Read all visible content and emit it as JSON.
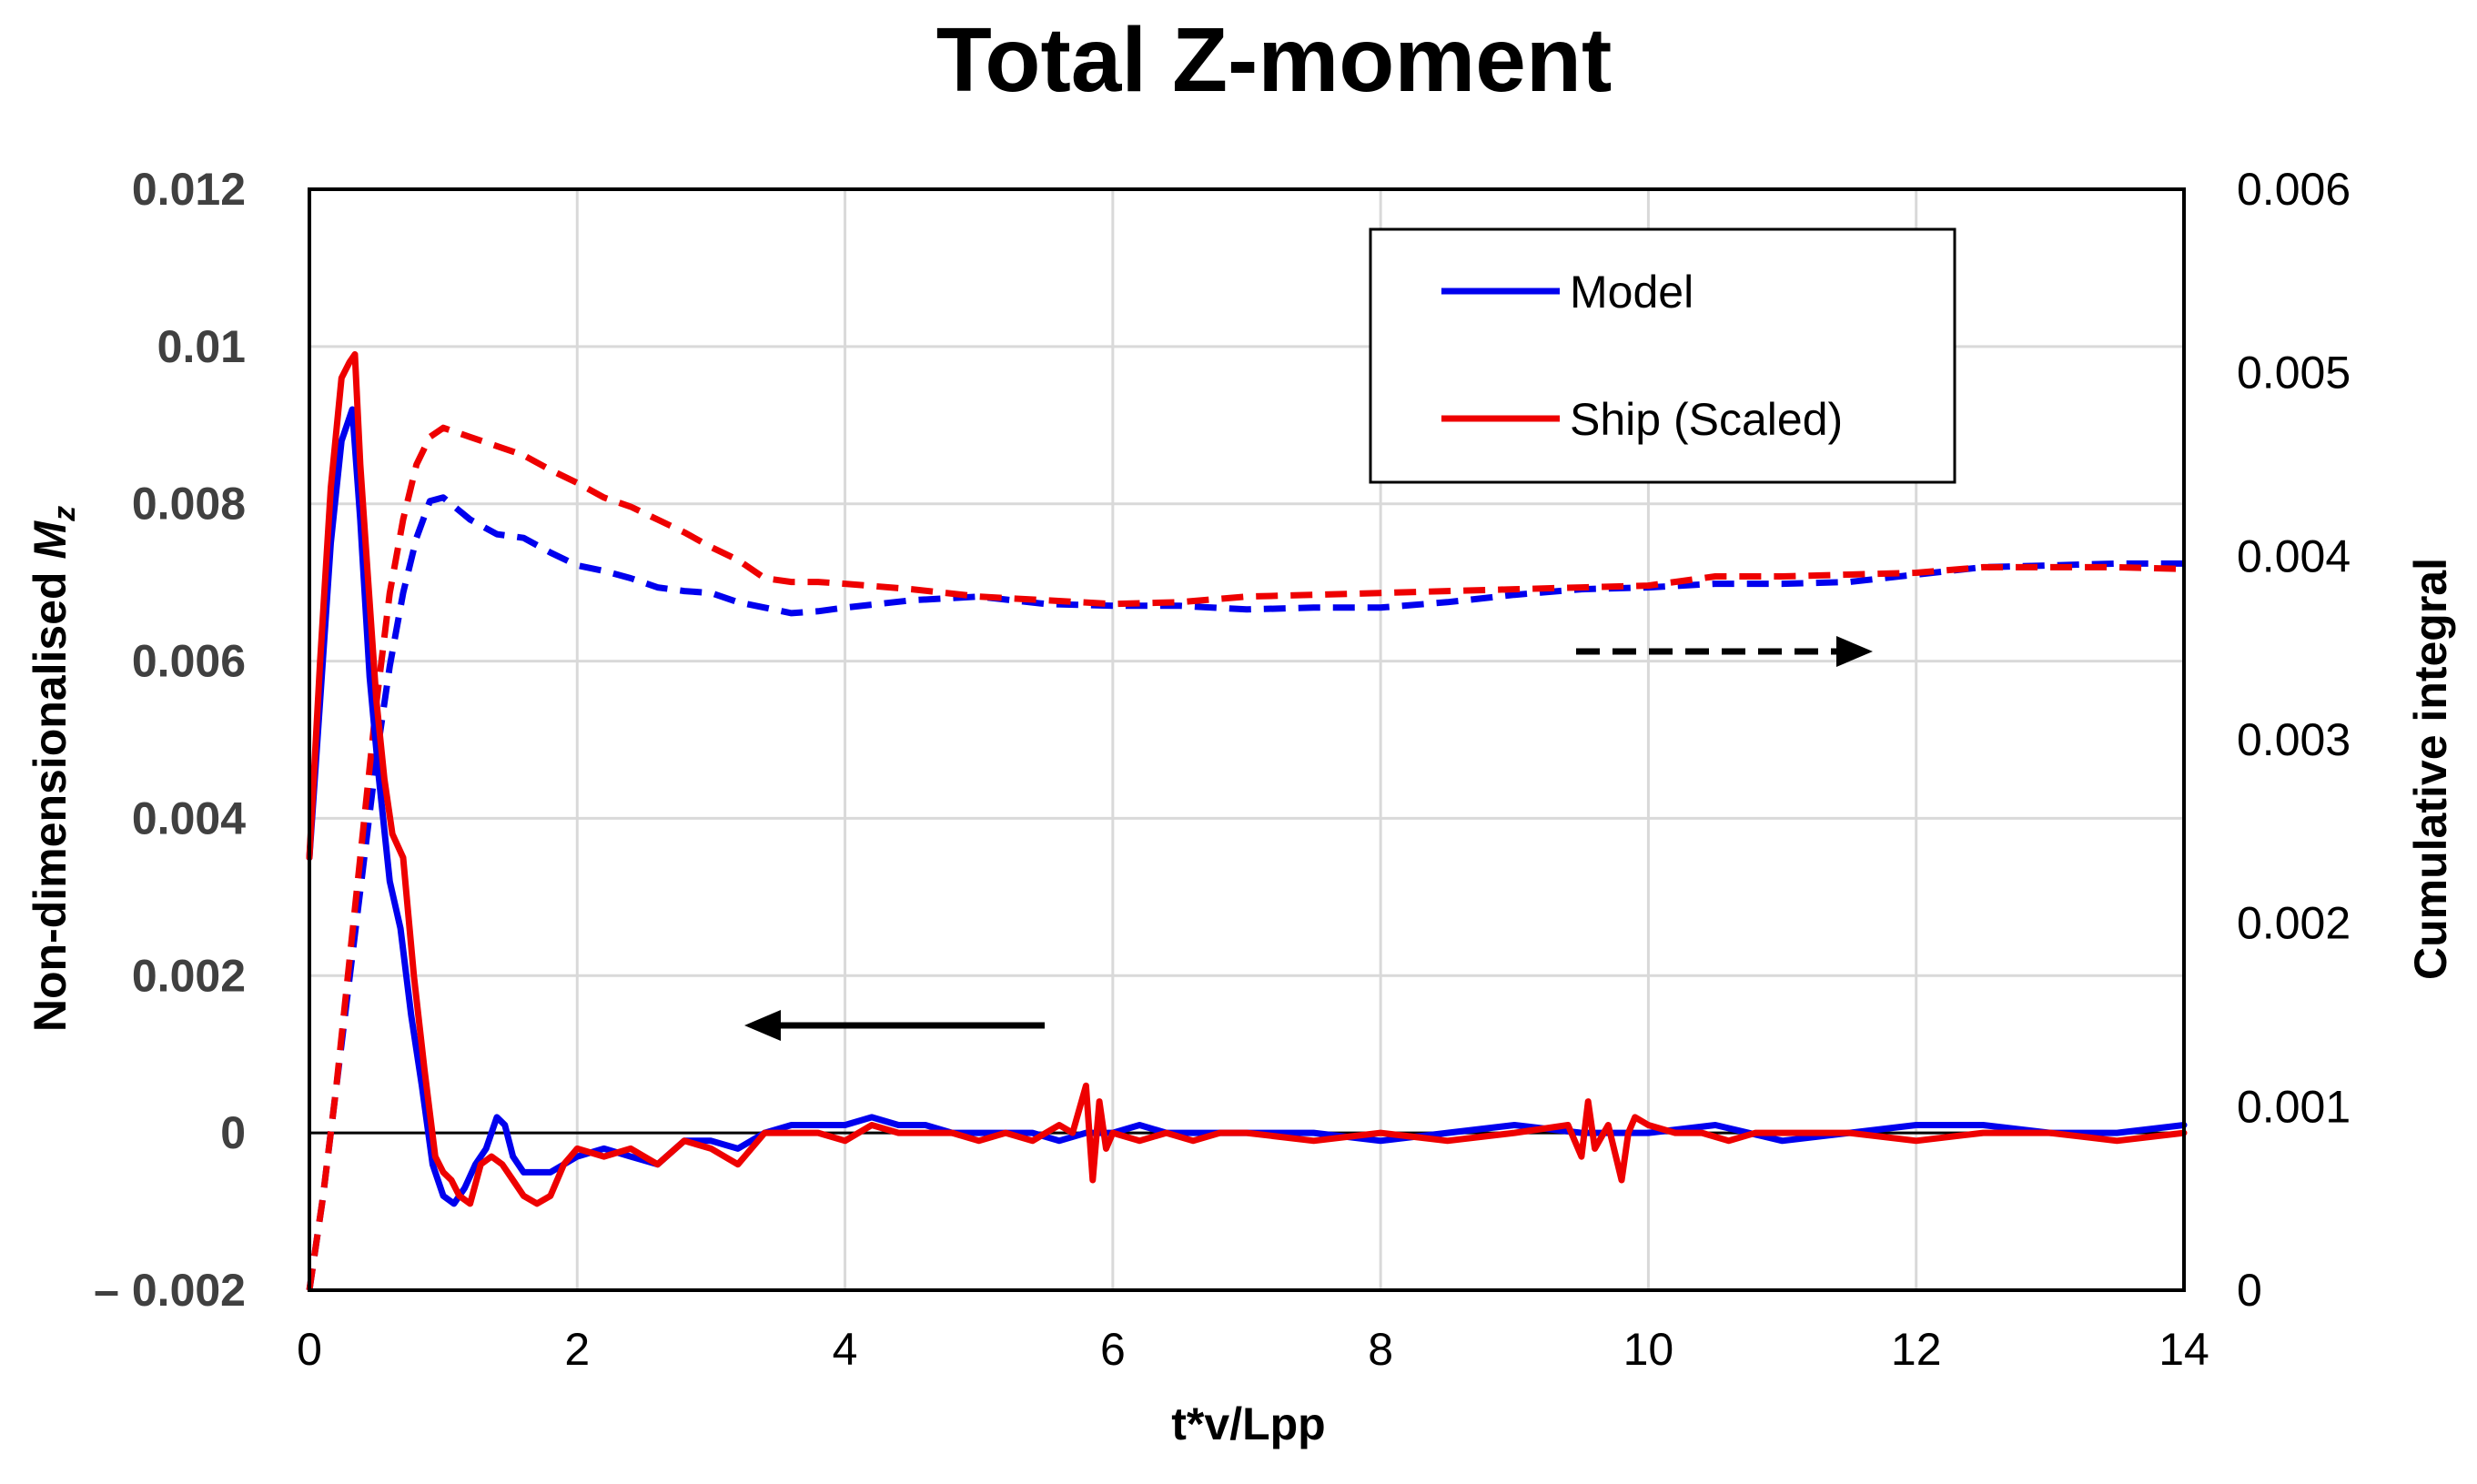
{
  "chart_data": {
    "type": "line",
    "title": "Total Z-moment",
    "xlabel": "t*v/Lpp",
    "ylabel": "Non-dimensionalised",
    "ylabel_symbol": "M",
    "ylabel_subscript": "z",
    "y2label": "Cumulative integral",
    "xlim": [
      0,
      14
    ],
    "ylim": [
      -0.002,
      0.012
    ],
    "y2lim": [
      0,
      0.006
    ],
    "x_ticks": [
      "0",
      "2",
      "4",
      "6",
      "8",
      "10",
      "12",
      "14"
    ],
    "y_ticks": [
      "– 0.002",
      "0",
      "0.002",
      "0.004",
      "0.006",
      "0.008",
      "0.01",
      "0.012"
    ],
    "y2_ticks": [
      "0",
      "0.001",
      "0.002",
      "0.003",
      "0.004",
      "0.005",
      "0.006"
    ],
    "grid": true,
    "legend_position": "top-right",
    "legend": [
      "Model",
      "Ship (Scaled)"
    ],
    "series": [
      {
        "name": "Model",
        "kind": "moment",
        "axis": "left",
        "color": "#0000ee",
        "style": "solid",
        "x": [
          0,
          0.08,
          0.16,
          0.24,
          0.32,
          0.38,
          0.45,
          0.52,
          0.6,
          0.68,
          0.76,
          0.84,
          0.92,
          1.0,
          1.08,
          1.16,
          1.24,
          1.32,
          1.4,
          1.46,
          1.52,
          1.6,
          1.7,
          1.8,
          1.9,
          2.0,
          2.2,
          2.4,
          2.6,
          2.8,
          3.0,
          3.2,
          3.4,
          3.6,
          3.8,
          4.0,
          4.2,
          4.4,
          4.6,
          4.8,
          5.0,
          5.2,
          5.4,
          5.6,
          5.8,
          6.0,
          6.2,
          6.4,
          6.6,
          6.8,
          7.0,
          7.5,
          8.0,
          8.5,
          9.0,
          9.5,
          10.0,
          10.5,
          11.0,
          11.5,
          12.0,
          12.5,
          13.0,
          13.5,
          14.0
        ],
        "values": [
          0.0035,
          0.0055,
          0.0075,
          0.0088,
          0.0092,
          0.0078,
          0.0058,
          0.0045,
          0.0032,
          0.0026,
          0.0015,
          0.0006,
          -0.0004,
          -0.0008,
          -0.0009,
          -0.0007,
          -0.0004,
          -0.0002,
          0.0002,
          0.0001,
          -0.0003,
          -0.0005,
          -0.0005,
          -0.0005,
          -0.0004,
          -0.0003,
          -0.0002,
          -0.0003,
          -0.0004,
          -0.0001,
          -0.0001,
          -0.0002,
          0.0,
          0.0001,
          0.0001,
          0.0001,
          0.0002,
          0.0001,
          0.0001,
          0.0,
          0.0,
          0.0,
          0.0,
          -0.0001,
          0.0,
          0.0,
          0.0001,
          0.0,
          0.0,
          0.0,
          0.0,
          0.0,
          -0.0001,
          0.0,
          0.0001,
          0.0,
          0.0,
          0.0001,
          -0.0001,
          0.0,
          0.0001,
          0.0001,
          0.0,
          0.0,
          0.0001
        ]
      },
      {
        "name": "Ship (Scaled)",
        "kind": "moment",
        "axis": "left",
        "color": "#ee0000",
        "style": "solid",
        "x": [
          0,
          0.08,
          0.16,
          0.24,
          0.3,
          0.34,
          0.38,
          0.44,
          0.5,
          0.56,
          0.62,
          0.7,
          0.78,
          0.86,
          0.94,
          1.0,
          1.06,
          1.12,
          1.2,
          1.28,
          1.36,
          1.44,
          1.52,
          1.6,
          1.7,
          1.8,
          1.9,
          2.0,
          2.2,
          2.4,
          2.6,
          2.8,
          3.0,
          3.2,
          3.4,
          3.6,
          3.8,
          4.0,
          4.2,
          4.4,
          4.6,
          4.8,
          5.0,
          5.2,
          5.4,
          5.6,
          5.7,
          5.8,
          5.85,
          5.9,
          5.95,
          6.0,
          6.2,
          6.4,
          6.6,
          6.8,
          7.0,
          7.5,
          8.0,
          8.5,
          9.0,
          9.4,
          9.5,
          9.55,
          9.6,
          9.7,
          9.8,
          9.85,
          9.9,
          10.0,
          10.2,
          10.4,
          10.6,
          10.8,
          11.0,
          11.5,
          12.0,
          12.5,
          13.0,
          13.5,
          14.0
        ],
        "values": [
          0.0035,
          0.006,
          0.0082,
          0.0096,
          0.0098,
          0.0099,
          0.0085,
          0.007,
          0.0055,
          0.0045,
          0.0038,
          0.0035,
          0.002,
          0.0008,
          -0.0003,
          -0.0005,
          -0.0006,
          -0.0008,
          -0.0009,
          -0.0004,
          -0.0003,
          -0.0004,
          -0.0006,
          -0.0008,
          -0.0009,
          -0.0008,
          -0.0004,
          -0.0002,
          -0.0003,
          -0.0002,
          -0.0004,
          -0.0001,
          -0.0002,
          -0.0004,
          0.0,
          0.0,
          0.0,
          -0.0001,
          0.0001,
          0.0,
          0.0,
          0.0,
          -0.0001,
          0.0,
          -0.0001,
          0.0001,
          0.0,
          0.0006,
          -0.0006,
          0.0004,
          -0.0002,
          0.0,
          -0.0001,
          0.0,
          -0.0001,
          0.0,
          0.0,
          -0.0001,
          0.0,
          -0.0001,
          0.0,
          0.0001,
          -0.0003,
          0.0004,
          -0.0002,
          0.0001,
          -0.0006,
          0.0,
          0.0002,
          0.0001,
          0.0,
          0.0,
          -0.0001,
          0.0,
          0.0,
          0.0,
          -0.0001,
          0.0,
          0.0,
          -0.0001,
          0.0
        ]
      },
      {
        "name": "Model",
        "kind": "cumulative",
        "axis": "right",
        "color": "#0000ee",
        "style": "dashed",
        "x": [
          0,
          0.1,
          0.2,
          0.3,
          0.4,
          0.5,
          0.6,
          0.7,
          0.8,
          0.9,
          1.0,
          1.2,
          1.4,
          1.6,
          1.8,
          2.0,
          2.2,
          2.4,
          2.6,
          2.8,
          3.0,
          3.2,
          3.4,
          3.6,
          3.8,
          4.0,
          4.5,
          5.0,
          5.5,
          6.0,
          6.5,
          7.0,
          7.5,
          8.0,
          8.5,
          9.0,
          9.5,
          10.0,
          10.5,
          11.0,
          11.5,
          12.0,
          12.5,
          13.0,
          13.5,
          14.0
        ],
        "values": [
          0,
          0.0005,
          0.0011,
          0.0017,
          0.0023,
          0.0029,
          0.0034,
          0.0038,
          0.0041,
          0.0043,
          0.00432,
          0.0042,
          0.00412,
          0.0041,
          0.00402,
          0.00395,
          0.00392,
          0.00388,
          0.00383,
          0.00381,
          0.0038,
          0.00375,
          0.00372,
          0.00369,
          0.0037,
          0.00372,
          0.00376,
          0.00378,
          0.00374,
          0.00373,
          0.00373,
          0.00371,
          0.00372,
          0.00372,
          0.00375,
          0.00379,
          0.00382,
          0.00383,
          0.00385,
          0.00385,
          0.00386,
          0.0039,
          0.00394,
          0.00395,
          0.00396,
          0.00396
        ]
      },
      {
        "name": "Ship (Scaled)",
        "kind": "cumulative",
        "axis": "right",
        "color": "#ee0000",
        "style": "dashed",
        "x": [
          0,
          0.1,
          0.2,
          0.3,
          0.4,
          0.5,
          0.6,
          0.7,
          0.8,
          0.9,
          1.0,
          1.2,
          1.4,
          1.6,
          1.8,
          2.0,
          2.2,
          2.4,
          2.6,
          2.8,
          3.0,
          3.2,
          3.4,
          3.6,
          3.8,
          4.0,
          4.5,
          5.0,
          5.5,
          6.0,
          6.5,
          7.0,
          7.5,
          8.0,
          8.5,
          9.0,
          9.5,
          10.0,
          10.5,
          11.0,
          11.5,
          12.0,
          12.5,
          13.0,
          13.5,
          14.0
        ],
        "values": [
          0,
          0.0005,
          0.0011,
          0.0018,
          0.0025,
          0.0032,
          0.0038,
          0.0042,
          0.0045,
          0.00465,
          0.0047,
          0.00465,
          0.0046,
          0.00455,
          0.00447,
          0.0044,
          0.00432,
          0.00427,
          0.0042,
          0.00413,
          0.00405,
          0.00398,
          0.00388,
          0.00386,
          0.00386,
          0.00385,
          0.00382,
          0.00378,
          0.00376,
          0.00374,
          0.00375,
          0.00378,
          0.00379,
          0.0038,
          0.00381,
          0.00382,
          0.00383,
          0.00384,
          0.00389,
          0.00389,
          0.0039,
          0.00391,
          0.00394,
          0.00394,
          0.00394,
          0.00393
        ]
      }
    ]
  }
}
